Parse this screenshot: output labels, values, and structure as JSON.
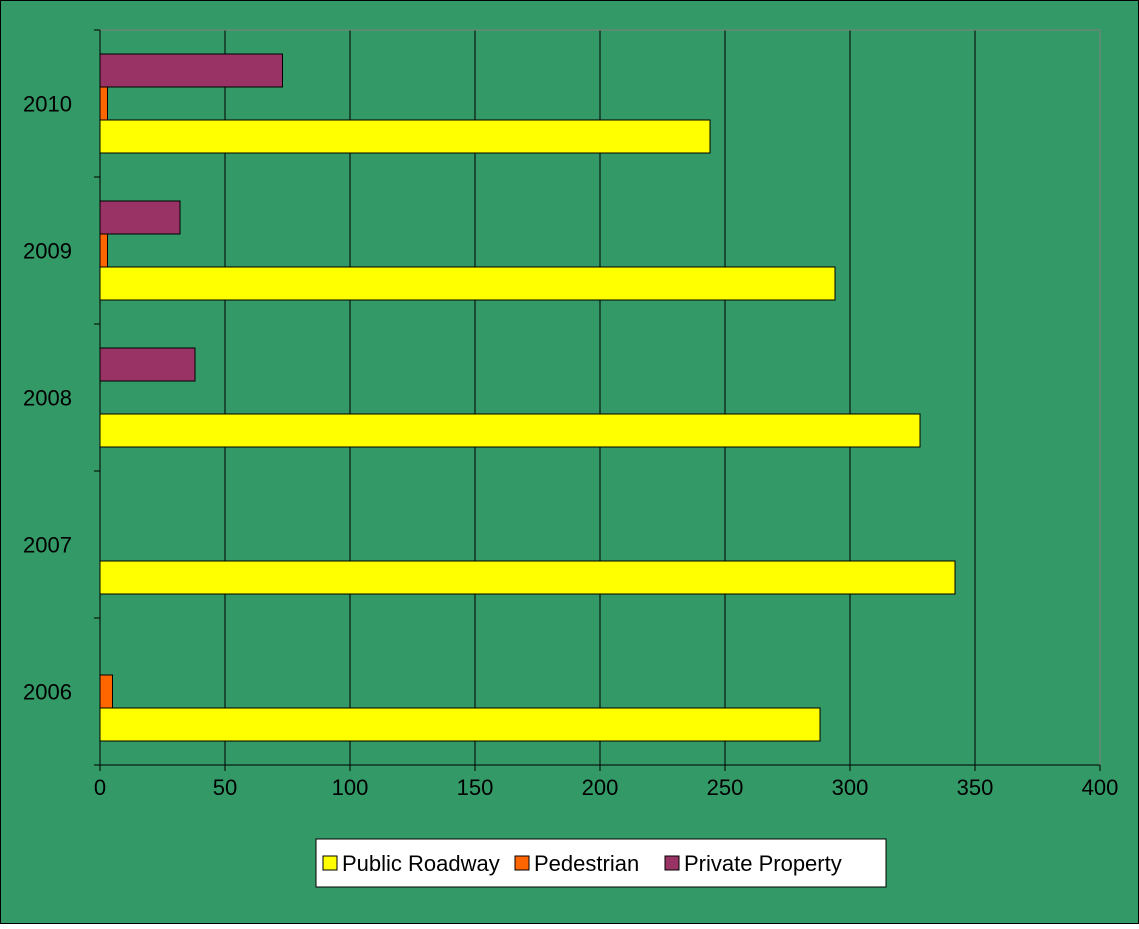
{
  "chart_data": {
    "type": "bar",
    "orientation": "horizontal",
    "title": "",
    "xlabel": "",
    "ylabel": "",
    "categories": [
      "2006",
      "2007",
      "2008",
      "2009",
      "2010"
    ],
    "xlim": [
      0,
      400
    ],
    "xticks": [
      "0",
      "50",
      "100",
      "150",
      "200",
      "250",
      "300",
      "350",
      "400"
    ],
    "grid": "vertical",
    "legend_position": "bottom",
    "series": [
      {
        "name": "Public Roadway",
        "values": [
          288,
          342,
          328,
          294,
          244
        ],
        "color": "#ffff00"
      },
      {
        "name": "Pedestrian",
        "values": [
          5,
          0,
          0,
          3,
          3
        ],
        "color": "#ff6600"
      },
      {
        "name": "Private Property",
        "values": [
          0,
          0,
          38,
          32,
          73
        ],
        "color": "#993366"
      }
    ],
    "colors": {
      "background": "#339966",
      "border": "#000000",
      "gridline": "#000000",
      "legend_background": "#ffffff"
    }
  }
}
